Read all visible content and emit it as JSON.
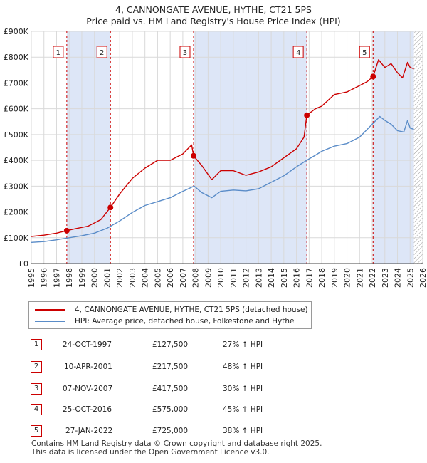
{
  "title": "4, CANNONGATE AVENUE, HYTHE, CT21 5PS",
  "subtitle": "Price paid vs. HM Land Registry's House Price Index (HPI)",
  "colors": {
    "red": "#cc0000",
    "blue": "#5a8cc8",
    "band": "#dde6f7",
    "grid": "#d9d9d9",
    "hatch": "#999999"
  },
  "chart_data": {
    "type": "line",
    "title": "4, CANNONGATE AVENUE, HYTHE, CT21 5PS",
    "subtitle": "Price paid vs. HM Land Registry's House Price Index (HPI)",
    "xlim": [
      1995,
      2026
    ],
    "ylim": [
      0,
      900000
    ],
    "x_ticks": [
      1995,
      1996,
      1997,
      1998,
      1999,
      2000,
      2001,
      2002,
      2003,
      2004,
      2005,
      2006,
      2007,
      2008,
      2009,
      2010,
      2011,
      2012,
      2013,
      2014,
      2015,
      2016,
      2017,
      2018,
      2019,
      2020,
      2021,
      2022,
      2023,
      2024,
      2025,
      2026
    ],
    "y_ticks": [
      0,
      100000,
      200000,
      300000,
      400000,
      500000,
      600000,
      700000,
      800000,
      900000
    ],
    "y_tick_labels": [
      "£0",
      "£100K",
      "£200K",
      "£300K",
      "£400K",
      "£500K",
      "£600K",
      "£700K",
      "£800K",
      "£900K"
    ],
    "series": [
      {
        "name": "4, CANNONGATE AVENUE, HYTHE, CT21 5PS (detached house)",
        "color": "#cc0000",
        "x": [
          1995,
          1996,
          1997,
          1997.81,
          1998.5,
          1999.5,
          2000.5,
          2001.27,
          2002,
          2003,
          2004,
          2005,
          2006,
          2007,
          2007.7,
          2007.85,
          2008.5,
          2009.3,
          2010,
          2011,
          2012,
          2013,
          2014,
          2015,
          2016,
          2016.6,
          2016.82,
          2017.5,
          2018,
          2019,
          2020,
          2021,
          2021.6,
          2022.07,
          2022.5,
          2023,
          2023.5,
          2024,
          2024.4,
          2024.8,
          2025,
          2025.3
        ],
        "values": [
          105000,
          110000,
          118000,
          127500,
          135000,
          145000,
          170000,
          217500,
          270000,
          330000,
          370000,
          400000,
          400000,
          425000,
          460000,
          417500,
          380000,
          325000,
          360000,
          360000,
          342000,
          355000,
          375000,
          410000,
          445000,
          490000,
          575000,
          600000,
          610000,
          655000,
          665000,
          690000,
          705000,
          725000,
          790000,
          760000,
          775000,
          740000,
          720000,
          780000,
          760000,
          755000
        ]
      },
      {
        "name": "HPI: Average price, detached house, Folkestone and Hythe",
        "color": "#5a8cc8",
        "x": [
          1995,
          1996,
          1997,
          1998,
          1999,
          2000,
          2001,
          2002,
          2003,
          2004,
          2005,
          2006,
          2007,
          2007.9,
          2008.5,
          2009.3,
          2010,
          2011,
          2012,
          2013,
          2014,
          2015,
          2016,
          2016.8,
          2017.5,
          2018,
          2019,
          2020,
          2021,
          2022,
          2022.6,
          2023,
          2023.5,
          2024,
          2024.5,
          2024.8,
          2025,
          2025.3
        ],
        "values": [
          82000,
          85000,
          92000,
          100000,
          108000,
          118000,
          137000,
          165000,
          198000,
          225000,
          240000,
          255000,
          280000,
          300000,
          275000,
          255000,
          280000,
          285000,
          282000,
          290000,
          315000,
          340000,
          375000,
          400000,
          420000,
          435000,
          455000,
          465000,
          490000,
          540000,
          570000,
          555000,
          540000,
          515000,
          510000,
          555000,
          525000,
          520000
        ]
      }
    ],
    "sales": [
      {
        "label": "1",
        "x": 1997.81,
        "value": 127500
      },
      {
        "label": "2",
        "x": 2001.27,
        "value": 217500
      },
      {
        "label": "3",
        "x": 2007.85,
        "value": 417500
      },
      {
        "label": "4",
        "x": 2016.82,
        "value": 575000
      },
      {
        "label": "5",
        "x": 2022.07,
        "value": 725000
      }
    ],
    "shaded_bands": [
      [
        1997.81,
        2001.27
      ],
      [
        2007.85,
        2016.82
      ],
      [
        2022.07,
        2025.3
      ]
    ],
    "hatched_from": 2025.3
  },
  "legend": {
    "items": [
      {
        "label": "4, CANNONGATE AVENUE, HYTHE, CT21 5PS (detached house)"
      },
      {
        "label": "HPI: Average price, detached house, Folkestone and Hythe"
      }
    ]
  },
  "transactions": [
    {
      "num": "1",
      "date": "24-OCT-1997",
      "price": "£127,500",
      "hpi": "27% ↑ HPI"
    },
    {
      "num": "2",
      "date": "10-APR-2001",
      "price": "£217,500",
      "hpi": "48% ↑ HPI"
    },
    {
      "num": "3",
      "date": "07-NOV-2007",
      "price": "£417,500",
      "hpi": "30% ↑ HPI"
    },
    {
      "num": "4",
      "date": "25-OCT-2016",
      "price": "£575,000",
      "hpi": "45% ↑ HPI"
    },
    {
      "num": "5",
      "date": "27-JAN-2022",
      "price": "£725,000",
      "hpi": "38% ↑ HPI"
    }
  ],
  "footer": {
    "line1": "Contains HM Land Registry data © Crown copyright and database right 2025.",
    "line2": "This data is licensed under the Open Government Licence v3.0."
  }
}
